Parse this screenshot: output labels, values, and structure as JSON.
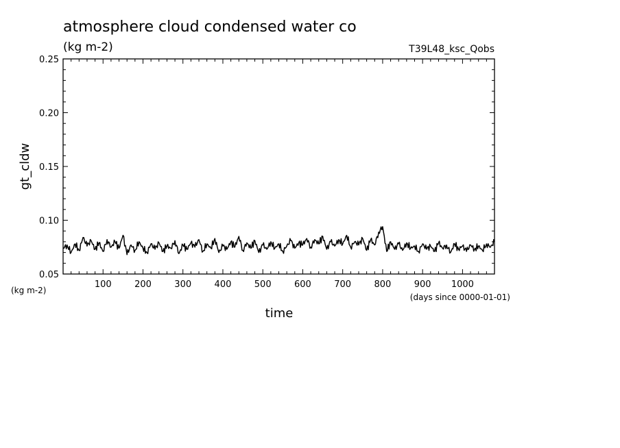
{
  "title": "atmosphere cloud condensed water co",
  "units": "(kg m-2)",
  "experiment": "T39L48_ksc_Qobs",
  "chart_data": {
    "type": "line",
    "title": "atmosphere cloud condensed water co",
    "xlabel": "time",
    "xunits": "(days since 0000-01-01)",
    "ylabel": "gt_cldw",
    "yunits": "(kg m-2)",
    "xlim": [
      0,
      1080
    ],
    "ylim": [
      0.05,
      0.25
    ],
    "xticks": [
      100,
      200,
      300,
      400,
      500,
      600,
      700,
      800,
      900,
      1000
    ],
    "xtick_labels": [
      "100",
      "200",
      "300",
      "400",
      "500",
      "600",
      "700",
      "800",
      "900",
      "1000"
    ],
    "yticks": [
      0.05,
      0.1,
      0.15,
      0.2,
      0.25
    ],
    "ytick_labels": [
      "0.05",
      "0.10",
      "0.15",
      "0.20",
      "0.25"
    ],
    "grid": false,
    "series": [
      {
        "x": [
          0,
          10,
          20,
          30,
          40,
          50,
          60,
          70,
          80,
          90,
          100,
          110,
          120,
          130,
          140,
          150,
          160,
          170,
          180,
          190,
          200,
          210,
          220,
          230,
          240,
          250,
          260,
          270,
          280,
          290,
          300,
          310,
          320,
          330,
          340,
          350,
          360,
          370,
          380,
          390,
          400,
          410,
          420,
          430,
          440,
          450,
          460,
          470,
          480,
          490,
          500,
          510,
          520,
          530,
          540,
          550,
          560,
          570,
          580,
          590,
          600,
          610,
          620,
          630,
          640,
          650,
          660,
          670,
          680,
          690,
          700,
          710,
          720,
          730,
          740,
          750,
          760,
          770,
          780,
          790,
          800,
          810,
          820,
          830,
          840,
          850,
          860,
          870,
          880,
          890,
          900,
          910,
          920,
          930,
          940,
          950,
          960,
          970,
          980,
          990,
          1000,
          1010,
          1020,
          1030,
          1040,
          1050,
          1060,
          1070,
          1080
        ],
        "y": [
          0.074,
          0.077,
          0.07,
          0.078,
          0.072,
          0.084,
          0.076,
          0.081,
          0.073,
          0.079,
          0.071,
          0.082,
          0.075,
          0.08,
          0.074,
          0.086,
          0.068,
          0.077,
          0.072,
          0.08,
          0.074,
          0.07,
          0.078,
          0.073,
          0.079,
          0.071,
          0.076,
          0.074,
          0.081,
          0.069,
          0.077,
          0.073,
          0.079,
          0.075,
          0.082,
          0.071,
          0.078,
          0.074,
          0.083,
          0.07,
          0.076,
          0.073,
          0.08,
          0.075,
          0.085,
          0.072,
          0.079,
          0.074,
          0.081,
          0.07,
          0.077,
          0.073,
          0.08,
          0.074,
          0.078,
          0.071,
          0.076,
          0.081,
          0.074,
          0.079,
          0.077,
          0.083,
          0.075,
          0.082,
          0.078,
          0.085,
          0.073,
          0.08,
          0.076,
          0.082,
          0.078,
          0.086,
          0.075,
          0.08,
          0.077,
          0.083,
          0.072,
          0.082,
          0.077,
          0.089,
          0.094,
          0.071,
          0.08,
          0.073,
          0.078,
          0.072,
          0.079,
          0.074,
          0.076,
          0.071,
          0.078,
          0.073,
          0.076,
          0.071,
          0.079,
          0.074,
          0.077,
          0.07,
          0.078,
          0.073,
          0.076,
          0.071,
          0.077,
          0.073,
          0.076,
          0.072,
          0.078,
          0.075,
          0.08
        ]
      }
    ]
  }
}
